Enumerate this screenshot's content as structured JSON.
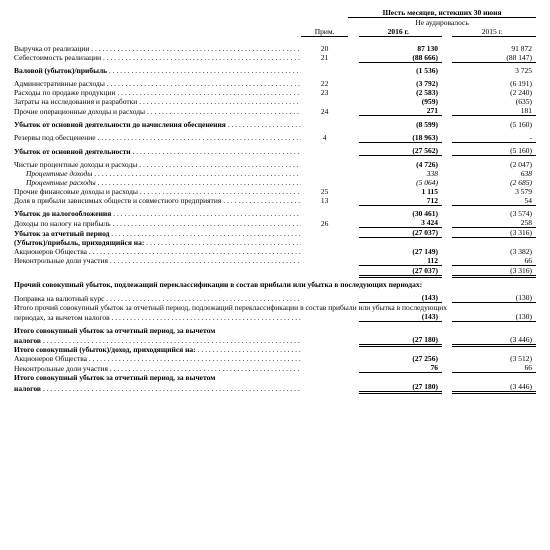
{
  "period_header": "Шесть месяцев, истекших 30 июня",
  "unaudited": "Не аудировалось",
  "col_note": "Прим.",
  "col_2016": "2016 г.",
  "col_2015": "2015 г.",
  "rows": [
    {
      "k": "sp2"
    },
    {
      "k": "r",
      "lbl": "Выручка от реализации",
      "note": "20",
      "a": "87 130",
      "b": "91 872"
    },
    {
      "k": "r",
      "lbl": "Себестоимость реализации",
      "note": "21",
      "a": "(88 666)",
      "b": "(88 147)",
      "bb": true
    },
    {
      "k": "sp"
    },
    {
      "k": "r",
      "lbl": "Валовой (убыток)/прибыль",
      "bold": true,
      "a": "(1 536)",
      "b": "3 725"
    },
    {
      "k": "sp"
    },
    {
      "k": "r",
      "lbl": "Административные расходы",
      "note": "22",
      "a": "(3 792)",
      "b": "(6 191)"
    },
    {
      "k": "r",
      "lbl": "Расходы по продаже продукции",
      "note": "23",
      "a": "(2 583)",
      "b": "(2 240)"
    },
    {
      "k": "r",
      "lbl": "Затраты на исследования и разработки",
      "a": "(959)",
      "b": "(635)"
    },
    {
      "k": "r",
      "lbl": "Прочие операционные доходы и расходы",
      "note": "24",
      "a": "271",
      "b": "181",
      "bb": true
    },
    {
      "k": "sp"
    },
    {
      "k": "r",
      "lbl": "Убыток от основной деятельности до начисления обесценения",
      "bold": true,
      "a": "(8 599)",
      "b": "(5 160)"
    },
    {
      "k": "sp"
    },
    {
      "k": "r",
      "lbl": "Резервы под обесценение",
      "note": "4",
      "a": "(18 963)",
      "b": "-",
      "bb": true
    },
    {
      "k": "sp"
    },
    {
      "k": "r",
      "lbl": "Убыток от основной деятельности",
      "bold": true,
      "a": "(27 562)",
      "b": "(5 160)",
      "bb": true
    },
    {
      "k": "sp"
    },
    {
      "k": "r",
      "lbl": "Чистые процентные доходы и расходы",
      "a": "(4 726)",
      "b": "(2 047)"
    },
    {
      "k": "r",
      "lbl": "Процентные доходы",
      "ital": true,
      "indent": true,
      "a": "338",
      "ai": true,
      "b": "638",
      "bi": true
    },
    {
      "k": "r",
      "lbl": "Процентные расходы",
      "ital": true,
      "indent": true,
      "a": "(5 064)",
      "ai": true,
      "b": "(2 685)",
      "bi": true
    },
    {
      "k": "r",
      "lbl": "Прочие финансовые доходы и расходы",
      "note": "25",
      "a": "1 115",
      "b": "3 579"
    },
    {
      "k": "r",
      "lbl": "Доля в прибыли зависимых обществ и совместного предприятия",
      "note": "13",
      "a": "712",
      "b": "54",
      "bb": true
    },
    {
      "k": "sp"
    },
    {
      "k": "r",
      "lbl": "Убыток до налогообложения",
      "bold": true,
      "a": "(30 461)",
      "b": "(3 574)"
    },
    {
      "k": "r",
      "lbl": "Доходы по налогу на прибыль",
      "note": "26",
      "a": "3 424",
      "b": "258",
      "bb": true
    },
    {
      "k": "r",
      "lbl": "Убыток за отчетный период",
      "bold": true,
      "a": "(27 037)",
      "b": "(3 316)",
      "bb": true
    },
    {
      "k": "r",
      "lbl": "(Убыток)/прибыль, приходящийся на:",
      "bold": true
    },
    {
      "k": "r",
      "lbl": "Акционеров Общества",
      "a": "(27 149)",
      "b": "(3 382)"
    },
    {
      "k": "r",
      "lbl": "Неконтрольные доли участия",
      "a": "112",
      "b": "66",
      "bb": true
    },
    {
      "k": "r",
      "a": "(27 037)",
      "b": "(3 316)",
      "dbl": true,
      "bolda": true
    },
    {
      "k": "sp"
    },
    {
      "k": "txt",
      "lbl": "Прочий совокупный убыток, подлежащий переклассификации в состав прибыли или убытка в последующих периодах:",
      "bold": true
    },
    {
      "k": "sp"
    },
    {
      "k": "r",
      "lbl": "Поправка на валютный курс",
      "a": "(143)",
      "b": "(130)",
      "bb": true
    },
    {
      "k": "txt",
      "lbl": "Итого прочий совокупный убыток за отчетный период, подлежащий переклассификации в состав прибыли или убытка в последующих"
    },
    {
      "k": "r",
      "lbl": "периодах, за вычетом налогов",
      "a": "(143)",
      "b": "(130)",
      "bb": true,
      "bolda": true
    },
    {
      "k": "sp"
    },
    {
      "k": "txt",
      "lbl": "Итого совокупный убыток за отчетный период, за вычетом",
      "bold": true
    },
    {
      "k": "r",
      "lbl": "налогов",
      "bold": true,
      "a": "(27 180)",
      "b": "(3 446)",
      "dbl": true,
      "bolda": true
    },
    {
      "k": "r",
      "lbl": "Итого совокупный (убыток)/доход, приходящийся на:",
      "bold": true
    },
    {
      "k": "r",
      "lbl": "Акционеров Общества",
      "a": "(27 256)",
      "b": "(3 512)"
    },
    {
      "k": "r",
      "lbl": "Неконтрольные доли участия",
      "a": "76",
      "b": "66",
      "bb": true
    },
    {
      "k": "txt",
      "lbl": "Итого совокупный убыток за отчетный период, за вычетом",
      "bold": true
    },
    {
      "k": "r",
      "lbl": "налогов",
      "bold": true,
      "a": "(27 180)",
      "b": "(3 446)",
      "dbl": true,
      "bolda": true
    }
  ]
}
